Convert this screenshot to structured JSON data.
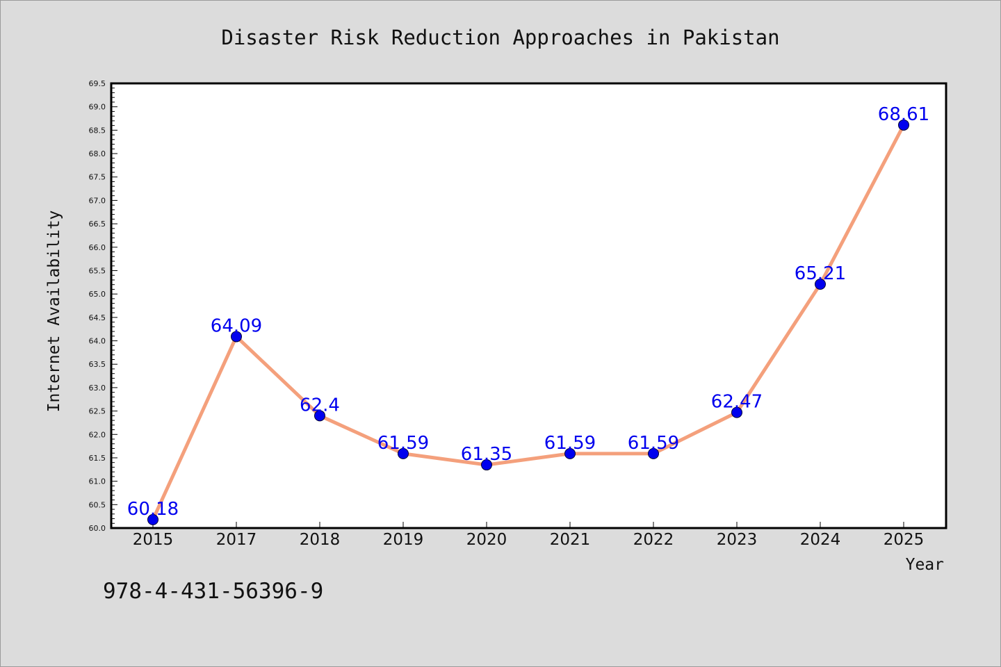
{
  "chart_data": {
    "type": "line",
    "title": "Disaster Risk Reduction Approaches in Pakistan",
    "xlabel": "Year",
    "ylabel": "Internet Availability",
    "categories": [
      "2015",
      "2017",
      "2018",
      "2019",
      "2020",
      "2021",
      "2022",
      "2023",
      "2024",
      "2025"
    ],
    "series": [
      {
        "values": [
          60.18,
          64.09,
          62.4,
          61.59,
          61.35,
          61.59,
          61.59,
          62.47,
          65.21,
          68.61
        ]
      }
    ],
    "data_labels": [
      "60.18",
      "64.09",
      "62.4",
      "61.59",
      "61.35",
      "61.59",
      "61.59",
      "62.47",
      "65.21",
      "68.61"
    ],
    "ylim": [
      60.0,
      69.5
    ],
    "yticks": [
      "60.0",
      "60.5",
      "61.0",
      "61.5",
      "62.0",
      "62.5",
      "63.0",
      "63.5",
      "64.0",
      "64.5",
      "65.0",
      "65.5",
      "66.0",
      "66.5",
      "67.0",
      "67.5",
      "68.0",
      "68.5",
      "69.0",
      "69.5"
    ],
    "grid": false,
    "line_color": "#f4a07c",
    "marker_color": "#0000ee"
  },
  "footnote": "978-4-431-56396-9"
}
